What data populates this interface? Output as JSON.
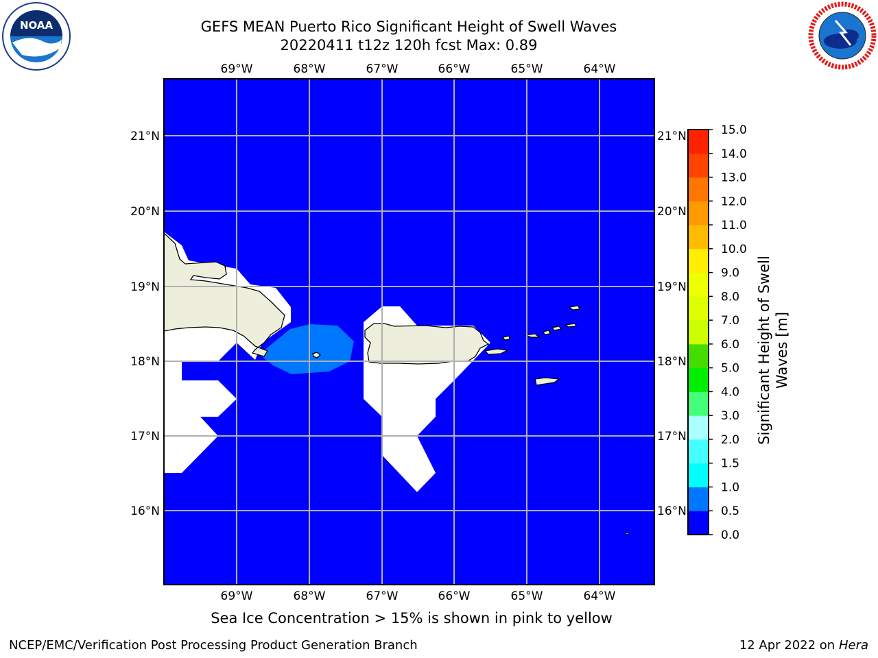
{
  "title": {
    "line1": "GEFS MEAN Puerto Rico Significant Height of Swell Waves",
    "line2": "20220411 t12z 120h fcst   Max: 0.89"
  },
  "map": {
    "lon_labels": [
      "69°W",
      "68°W",
      "67°W",
      "66°W",
      "65°W",
      "64°W"
    ],
    "lat_labels": [
      "21°N",
      "20°N",
      "19°N",
      "18°N",
      "17°N",
      "16°N"
    ],
    "colors": {
      "ocean_lowest_bin": "#0000ff",
      "bin_0_5_to_1_0": "#0077ff",
      "land": "#eeeedd",
      "no_data": "#ffffff",
      "grid": "#b0b0b0"
    },
    "regions": [
      "Hispaniola",
      "Puerto Rico",
      "Virgin Islands"
    ]
  },
  "colorbar": {
    "label": "Significant Height of Swell Waves [m]",
    "ticks": [
      "15.0",
      "14.0",
      "13.0",
      "12.0",
      "11.0",
      "10.0",
      "9.0",
      "8.0",
      "7.0",
      "6.0",
      "5.0",
      "4.0",
      "3.0",
      "2.0",
      "1.5",
      "1.0",
      "0.5",
      "0.0"
    ],
    "bins": [
      {
        "from": "0.0",
        "to": "0.5",
        "color": "#0000ff"
      },
      {
        "from": "0.5",
        "to": "1.0",
        "color": "#0077ff"
      },
      {
        "from": "1.0",
        "to": "1.5",
        "color": "#00ffff"
      },
      {
        "from": "1.5",
        "to": "2.0",
        "color": "#44ffff"
      },
      {
        "from": "2.0",
        "to": "3.0",
        "color": "#aaffff"
      },
      {
        "from": "3.0",
        "to": "4.0",
        "color": "#44ff77"
      },
      {
        "from": "4.0",
        "to": "5.0",
        "color": "#00ee00"
      },
      {
        "from": "5.0",
        "to": "6.0",
        "color": "#44dd00"
      },
      {
        "from": "6.0",
        "to": "7.0",
        "color": "#ccff00"
      },
      {
        "from": "7.0",
        "to": "8.0",
        "color": "#ddff00"
      },
      {
        "from": "8.0",
        "to": "9.0",
        "color": "#eeff00"
      },
      {
        "from": "9.0",
        "to": "10.0",
        "color": "#ffee00"
      },
      {
        "from": "10.0",
        "to": "11.0",
        "color": "#ffbb00"
      },
      {
        "from": "11.0",
        "to": "12.0",
        "color": "#ff9900"
      },
      {
        "from": "12.0",
        "to": "13.0",
        "color": "#ff7700"
      },
      {
        "from": "13.0",
        "to": "14.0",
        "color": "#ff4400"
      },
      {
        "from": "14.0",
        "to": "15.0",
        "color": "#ff2200"
      }
    ]
  },
  "logos": {
    "left": {
      "text": "NOAA",
      "ring_text": "NATIONAL OCEANIC AND ATMOSPHERIC ADMINISTRATION · U.S. DEPARTMENT OF COMMERCE"
    },
    "right": {
      "ring_text": "NATIONAL WEATHER SERVICE"
    }
  },
  "subtitle": "Sea Ice Concentration > 15% is shown in pink to yellow",
  "footer": {
    "left": "NCEP/EMC/Verification Post Processing Product Generation Branch",
    "right_prefix": "12 Apr 2022 on ",
    "right_machine": "Hera"
  }
}
